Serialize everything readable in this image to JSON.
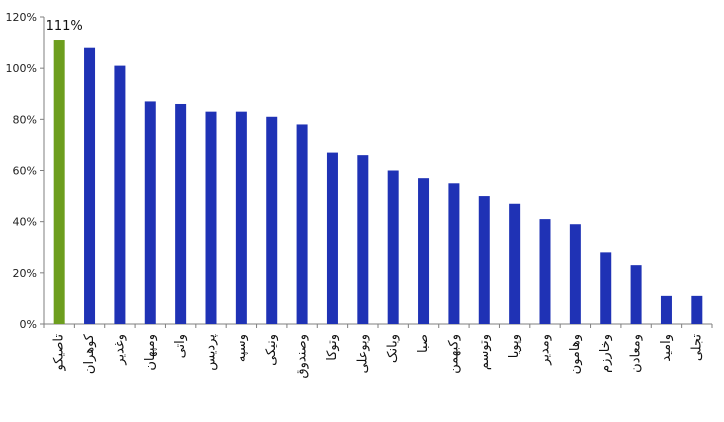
{
  "chart_data": {
    "type": "bar",
    "categories": [
      "تاصیکو",
      "کوهران",
      "وغدیر",
      "ومپهان",
      "واتی",
      "پردیس",
      "وسپه",
      "ونیکی",
      "وصندوق",
      "وتوکا",
      "وبوعلی",
      "وبانک",
      "صبا",
      "وکبهمن",
      "وتوسم",
      "وپویا",
      "ومدیر",
      "وهامون",
      "وخارزم",
      "ومعادن",
      "وامید",
      "تجلی"
    ],
    "values": [
      111,
      108,
      101,
      87,
      86,
      83,
      83,
      81,
      78,
      67,
      66,
      60,
      57,
      55,
      50,
      47,
      41,
      39,
      28,
      23,
      11,
      11
    ],
    "value_unit": "%",
    "ylim": [
      0,
      120
    ],
    "y_ticks": [
      "0%",
      "20%",
      "40%",
      "60%",
      "80%",
      "100%",
      "120%"
    ],
    "y_tick_values": [
      0,
      20,
      40,
      60,
      80,
      100,
      120
    ],
    "data_labels": [
      {
        "index": 0,
        "text": "111%"
      }
    ],
    "colors": {
      "highlight": "#6d9e1e",
      "bar": "#1f32b5",
      "axis": "#7f7f7f"
    },
    "highlight_index": 0,
    "grid": false,
    "title": "",
    "xlabel": "",
    "ylabel": ""
  }
}
